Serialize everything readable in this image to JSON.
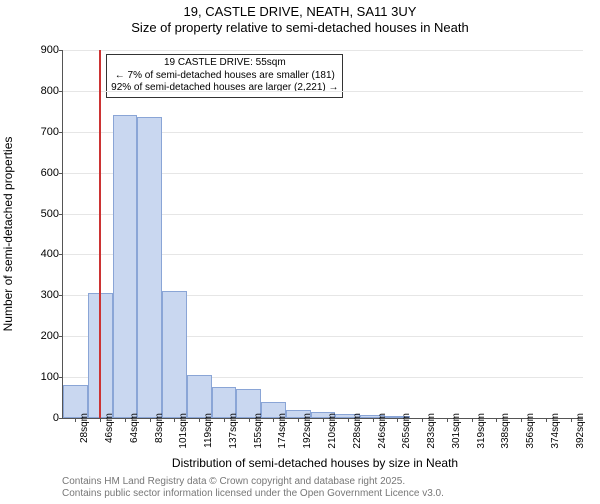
{
  "title_line1": "19, CASTLE DRIVE, NEATH, SA11 3UY",
  "title_line2": "Size of property relative to semi-detached houses in Neath",
  "ylabel": "Number of semi-detached properties",
  "xlabel": "Distribution of semi-detached houses by size in Neath",
  "footer_line1": "Contains HM Land Registry data © Crown copyright and database right 2025.",
  "footer_line2": "Contains public sector information licensed under the Open Government Licence v3.0.",
  "annotation": {
    "line1": "19 CASTLE DRIVE: 55sqm",
    "line2": "← 7% of semi-detached houses are smaller (181)",
    "line3": "92% of semi-detached houses are larger (2,221) →"
  },
  "histogram": {
    "type": "bar",
    "x_labels": [
      "28sqm",
      "46sqm",
      "64sqm",
      "83sqm",
      "101sqm",
      "119sqm",
      "137sqm",
      "155sqm",
      "174sqm",
      "192sqm",
      "210sqm",
      "228sqm",
      "246sqm",
      "265sqm",
      "283sqm",
      "301sqm",
      "319sqm",
      "338sqm",
      "356sqm",
      "374sqm",
      "392sqm"
    ],
    "values": [
      80,
      305,
      740,
      735,
      310,
      105,
      75,
      70,
      40,
      20,
      15,
      10,
      8,
      5,
      0,
      0,
      0,
      0,
      0,
      0,
      0
    ],
    "bar_fill": "#c9d7f0",
    "bar_border": "#8aa5d6",
    "background_color": "#ffffff",
    "grid_color": "#e6e6e6",
    "ylim": [
      0,
      900
    ],
    "ytick_step": 100,
    "ref_line_color": "#cc3333",
    "ref_line_bin_index": 1,
    "ref_line_position": 0.5,
    "title_fontsize": 13,
    "label_fontsize": 12,
    "tick_fontsize": 11
  }
}
